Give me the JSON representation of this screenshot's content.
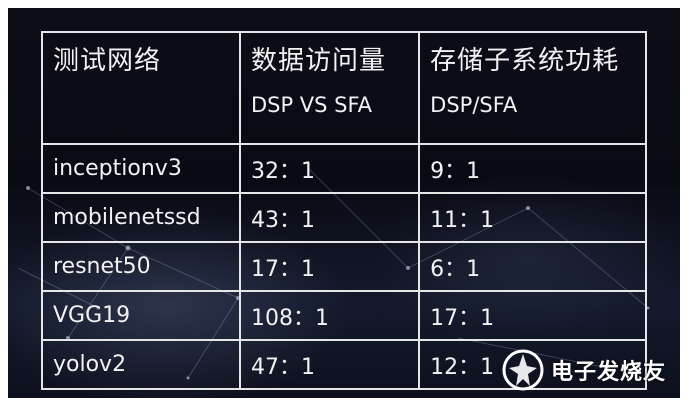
{
  "table": {
    "header": {
      "col1": "测试网络",
      "col2_title": "数据访问量",
      "col2_sub": "DSP VS SFA",
      "col3_title": "存储子系统功耗",
      "col3_sub": "DSP/SFA"
    },
    "rows": [
      {
        "network": "inceptionv3",
        "data_access": "32：1",
        "power": "9：1"
      },
      {
        "network": "mobilenetssd",
        "data_access": "43：1",
        "power": "11：1"
      },
      {
        "network": "resnet50",
        "data_access": "17：1",
        "power": "6：1"
      },
      {
        "network": "VGG19",
        "data_access": "108：1",
        "power": "17：1"
      },
      {
        "network": "yolov2",
        "data_access": "47：1",
        "power": "12：1"
      }
    ]
  },
  "watermark": {
    "text": "电子发烧友",
    "logo_icon": "elecfans-logo-icon"
  },
  "colors": {
    "background": "#0b0d17",
    "grid_lines": "#e6e6e6",
    "text": "#f2f2f2"
  }
}
